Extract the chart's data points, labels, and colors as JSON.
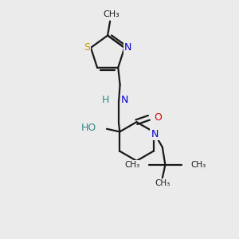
{
  "bg_color": "#ebebeb",
  "bond_color": "#1a1a1a",
  "S_color": "#c8a000",
  "N_color": "#0000cc",
  "O_color": "#dd0000",
  "H_color": "#2e8b8b",
  "figsize": [
    3.0,
    3.0
  ],
  "dpi": 100,
  "xlim": [
    0,
    10
  ],
  "ylim": [
    0,
    10
  ]
}
